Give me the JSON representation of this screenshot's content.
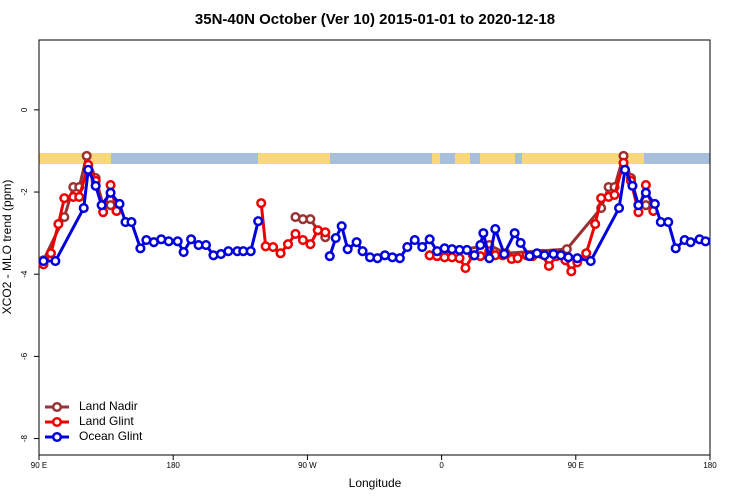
{
  "chart_data": {
    "type": "line",
    "title": "35N-40N October (Ver 10)   2015-01-01 to 2020-12-18",
    "xlabel": "Longitude",
    "ylabel": "XCO2 - MLO trend (ppm)",
    "xlim": [
      90,
      540
    ],
    "xticks": [
      {
        "value": 90,
        "label": "90 E"
      },
      180,
      {
        "value": 270,
        "label": "90 W"
      },
      {
        "value": 360,
        "label": "0"
      },
      {
        "value": 450,
        "label": "90 E"
      },
      {
        "value": 540,
        "label": "180"
      }
    ],
    "ylim": [
      -8.4,
      1.7
    ],
    "yticks": [
      0,
      -2,
      -4,
      -6,
      -8
    ],
    "legend": "lower left",
    "series": [
      {
        "name": "Land Nadir",
        "color": "#993333",
        "x": [
          93,
          107,
          113,
          117,
          122,
          128,
          133,
          138,
          142,
          200,
          262,
          267,
          272,
          277,
          282,
          320,
          352,
          392,
          403,
          444,
          467,
          472,
          476,
          482,
          487,
          492,
          497,
          502
        ],
        "values": [
          -3.66,
          -2.61,
          -1.88,
          -1.88,
          -1.12,
          -1.66,
          -2.32,
          -2.32,
          -2.46,
          null,
          -2.61,
          -2.66,
          -2.66,
          -2.93,
          -3.1,
          null,
          -3.54,
          -3.29,
          -3.49,
          -3.39,
          -2.39,
          -1.88,
          -1.88,
          -1.12,
          -1.66,
          -2.32,
          -2.32,
          -2.46
        ]
      },
      {
        "name": "Land Glint",
        "color": "#ee0000",
        "x": [
          93,
          98,
          103,
          107,
          113,
          117,
          123,
          128,
          133,
          138,
          142,
          190,
          239,
          242,
          247,
          252,
          257,
          262,
          267,
          272,
          277,
          282,
          320,
          352,
          357,
          362,
          367,
          372,
          376,
          381,
          386,
          392,
          396,
          401,
          407,
          411,
          417,
          421,
          427,
          432,
          437,
          443,
          447,
          451,
          457,
          463,
          467,
          472,
          476,
          482,
          487,
          492,
          497,
          502
        ],
        "values": [
          -3.76,
          -3.49,
          -2.78,
          -2.15,
          -2.12,
          -2.12,
          -1.34,
          -1.73,
          -2.49,
          -1.83,
          -2.46,
          null,
          -2.27,
          -3.32,
          -3.34,
          -3.49,
          -3.27,
          -3.02,
          -3.17,
          -3.27,
          -2.93,
          -2.98,
          null,
          -3.54,
          -3.56,
          -3.59,
          -3.59,
          -3.61,
          -3.85,
          -3.54,
          -3.56,
          -3.44,
          -3.54,
          -3.54,
          -3.63,
          -3.61,
          -3.54,
          -3.56,
          -3.51,
          -3.8,
          -3.56,
          -3.66,
          -3.93,
          -3.71,
          -3.49,
          -2.78,
          -2.15,
          -2.12,
          -2.07,
          -1.29,
          -1.73,
          -2.49,
          -1.83,
          -2.46
        ]
      },
      {
        "name": "Ocean Glint",
        "color": "#0000dd",
        "x": [
          93,
          101,
          120,
          123,
          128,
          132,
          138,
          144,
          148,
          152,
          158,
          162,
          167,
          172,
          177,
          183,
          187,
          192,
          197,
          202,
          207,
          212,
          217,
          223,
          227,
          232,
          237,
          260,
          285,
          289,
          293,
          297,
          303,
          307,
          312,
          317,
          322,
          327,
          332,
          337,
          342,
          347,
          352,
          357,
          362,
          367,
          372,
          377,
          382,
          386,
          388,
          392,
          396,
          402,
          409,
          413,
          419,
          424,
          429,
          435,
          440,
          445,
          451,
          460,
          479,
          483,
          488,
          492,
          497,
          503,
          507,
          512,
          517,
          523,
          527,
          533,
          537
        ],
        "values": [
          -3.68,
          -3.68,
          -2.39,
          -1.46,
          -1.85,
          -2.32,
          -2.02,
          -2.29,
          -2.73,
          -2.73,
          -3.37,
          -3.17,
          -3.22,
          -3.15,
          -3.2,
          -3.2,
          -3.46,
          -3.15,
          -3.29,
          -3.29,
          -3.54,
          -3.51,
          -3.44,
          -3.44,
          -3.44,
          -3.44,
          -2.71,
          null,
          -3.56,
          -3.12,
          -2.83,
          -3.39,
          -3.22,
          -3.44,
          -3.59,
          -3.61,
          -3.54,
          -3.59,
          -3.61,
          -3.34,
          -3.17,
          -3.34,
          -3.15,
          -3.44,
          -3.37,
          -3.39,
          -3.41,
          -3.41,
          -3.54,
          -3.29,
          -3.0,
          -3.61,
          -2.9,
          -3.51,
          -3.0,
          -3.24,
          -3.56,
          -3.49,
          -3.54,
          -3.51,
          -3.54,
          -3.59,
          -3.61,
          -3.68,
          -2.39,
          -1.46,
          -1.85,
          -2.32,
          -2.02,
          -2.29,
          -2.73,
          -2.73,
          -3.37,
          -3.17,
          -3.22,
          -3.15,
          -3.2
        ]
      }
    ]
  }
}
